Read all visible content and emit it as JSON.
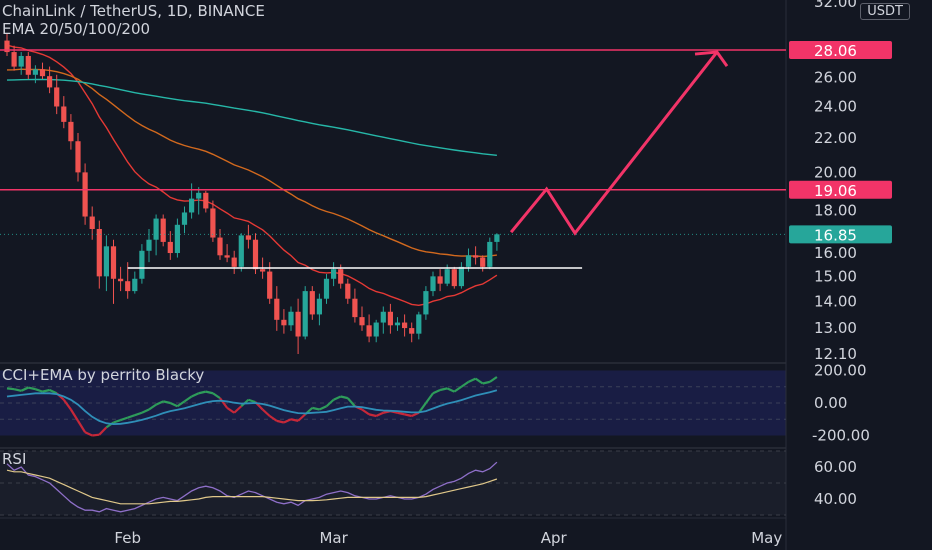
{
  "header": {
    "title": "ChainLink / TetherUS, 1D, BINANCE",
    "indicator": "EMA 20/50/100/200",
    "currency_button": "USDT"
  },
  "panes": {
    "cci_label": "CCI+EMA by perrito Blacky",
    "rsi_label": "RSI"
  },
  "colors": {
    "background": "#131722",
    "bull": "#26a69a",
    "bear": "#ef5350",
    "level_line": "#f23468",
    "current_price": "#26a69a",
    "ema20": "#e53935",
    "ema50": "#d2691e",
    "ema200": "#26b7a8",
    "projection": "#f23468",
    "neckline": "#ffffff"
  },
  "chart_data": [
    {
      "type": "candlestick",
      "title": "ChainLink / TetherUS, 1D, BINANCE",
      "ylim": [
        11.7,
        32.0
      ],
      "y_scale": "log",
      "y_ticks": [
        "12.10",
        "13.00",
        "14.00",
        "15.00",
        "16.00",
        "18.00",
        "20.00",
        "22.00",
        "24.00",
        "26.00",
        "32.00"
      ],
      "x_ticks": [
        "Feb",
        "Mar",
        "Apr",
        "May"
      ],
      "levels": [
        {
          "value": 28.06,
          "label": "28.06"
        },
        {
          "value": 19.06,
          "label": "19.06"
        }
      ],
      "current_price": {
        "value": 16.85,
        "label": "16.85"
      },
      "neckline": {
        "value": 15.35,
        "from_day": 17,
        "to_day": 81
      },
      "projection_path": [
        [
          71,
          16.95
        ],
        [
          76,
          19.1
        ],
        [
          80,
          16.9
        ],
        [
          100,
          27.9
        ]
      ],
      "candles_ohlc": [
        [
          28.8,
          29.4,
          27.6,
          27.9
        ],
        [
          27.9,
          28.4,
          26.5,
          26.8
        ],
        [
          26.8,
          27.9,
          26.2,
          27.6
        ],
        [
          27.6,
          27.9,
          25.9,
          26.2
        ],
        [
          26.2,
          26.9,
          25.6,
          26.6
        ],
        [
          26.6,
          27.1,
          25.9,
          26.1
        ],
        [
          26.1,
          26.8,
          24.9,
          25.3
        ],
        [
          25.3,
          26.2,
          23.5,
          24.0
        ],
        [
          24.0,
          24.7,
          22.6,
          23.0
        ],
        [
          23.0,
          23.5,
          21.3,
          21.8
        ],
        [
          21.8,
          22.3,
          19.5,
          20.0
        ],
        [
          20.0,
          20.5,
          17.3,
          17.7
        ],
        [
          17.7,
          18.2,
          16.6,
          17.1
        ],
        [
          17.1,
          17.5,
          14.5,
          15.0
        ],
        [
          15.0,
          16.8,
          14.4,
          16.3
        ],
        [
          16.3,
          16.6,
          13.9,
          14.9
        ],
        [
          14.9,
          15.4,
          14.4,
          14.8
        ],
        [
          14.8,
          15.6,
          14.1,
          14.4
        ],
        [
          14.4,
          15.2,
          14.3,
          14.9
        ],
        [
          14.9,
          16.4,
          14.7,
          16.1
        ],
        [
          16.1,
          17.1,
          15.6,
          16.6
        ],
        [
          16.6,
          17.8,
          15.9,
          17.6
        ],
        [
          17.6,
          17.8,
          16.3,
          16.5
        ],
        [
          16.5,
          17.0,
          15.7,
          16.0
        ],
        [
          16.0,
          17.6,
          15.8,
          17.3
        ],
        [
          17.3,
          18.2,
          16.9,
          17.9
        ],
        [
          17.9,
          19.4,
          17.6,
          18.6
        ],
        [
          18.6,
          19.2,
          17.8,
          18.9
        ],
        [
          18.9,
          19.0,
          17.9,
          18.1
        ],
        [
          18.1,
          18.5,
          16.5,
          16.7
        ],
        [
          16.7,
          17.1,
          15.7,
          15.9
        ],
        [
          15.9,
          16.4,
          15.6,
          15.8
        ],
        [
          15.8,
          16.1,
          15.1,
          15.4
        ],
        [
          15.4,
          16.9,
          15.2,
          16.8
        ],
        [
          16.8,
          17.3,
          16.2,
          16.6
        ],
        [
          16.6,
          16.9,
          15.1,
          15.3
        ],
        [
          15.3,
          15.8,
          14.9,
          15.2
        ],
        [
          15.2,
          15.6,
          13.9,
          14.1
        ],
        [
          14.1,
          14.6,
          12.9,
          13.3
        ],
        [
          13.3,
          13.7,
          12.8,
          13.1
        ],
        [
          13.1,
          13.8,
          12.9,
          13.6
        ],
        [
          13.6,
          14.1,
          12.1,
          12.7
        ],
        [
          12.7,
          14.6,
          12.6,
          14.4
        ],
        [
          14.4,
          14.6,
          13.3,
          13.5
        ],
        [
          13.5,
          14.3,
          13.1,
          14.1
        ],
        [
          14.1,
          15.1,
          13.9,
          14.9
        ],
        [
          14.9,
          15.6,
          14.6,
          15.3
        ],
        [
          15.3,
          15.5,
          14.5,
          14.7
        ],
        [
          14.7,
          14.9,
          13.9,
          14.1
        ],
        [
          14.1,
          14.5,
          13.2,
          13.4
        ],
        [
          13.4,
          13.8,
          12.9,
          13.1
        ],
        [
          13.1,
          13.5,
          12.5,
          12.7
        ],
        [
          12.7,
          13.3,
          12.5,
          13.2
        ],
        [
          13.2,
          13.8,
          12.8,
          13.6
        ],
        [
          13.6,
          13.9,
          12.8,
          13.1
        ],
        [
          13.1,
          13.4,
          12.9,
          13.2
        ],
        [
          13.2,
          13.5,
          12.7,
          13.0
        ],
        [
          13.0,
          13.2,
          12.5,
          12.8
        ],
        [
          12.8,
          13.6,
          12.6,
          13.5
        ],
        [
          13.5,
          14.6,
          13.3,
          14.4
        ],
        [
          14.4,
          15.2,
          14.2,
          15.0
        ],
        [
          15.0,
          15.3,
          14.4,
          14.7
        ],
        [
          14.7,
          15.5,
          14.6,
          15.3
        ],
        [
          15.3,
          15.4,
          14.5,
          14.6
        ],
        [
          14.6,
          15.6,
          14.5,
          15.4
        ],
        [
          15.4,
          16.2,
          15.2,
          15.9
        ],
        [
          15.9,
          16.3,
          15.5,
          15.8
        ],
        [
          15.8,
          15.9,
          15.2,
          15.4
        ],
        [
          15.4,
          16.7,
          15.3,
          16.5
        ],
        [
          16.5,
          16.9,
          16.1,
          16.85
        ]
      ]
    },
    {
      "type": "line",
      "title": "CCI+EMA by perrito Blacky",
      "ylim": [
        -240,
        230
      ],
      "y_ticks": [
        "200.00",
        "0.00",
        "-200.00"
      ],
      "series": [
        {
          "values": [
            90,
            85,
            75,
            95,
            85,
            70,
            80,
            60,
            20,
            -40,
            -110,
            -180,
            -200,
            -195,
            -150,
            -120,
            -105,
            -90,
            -75,
            -60,
            -40,
            -10,
            10,
            0,
            -20,
            10,
            40,
            60,
            70,
            60,
            30,
            -30,
            -60,
            -20,
            20,
            5,
            -40,
            -80,
            -110,
            -120,
            -100,
            -110,
            -70,
            -30,
            -40,
            -20,
            20,
            40,
            30,
            -20,
            -40,
            -70,
            -80,
            -60,
            -50,
            -60,
            -70,
            -80,
            -60,
            0,
            60,
            80,
            90,
            70,
            100,
            130,
            150,
            120,
            130,
            160
          ]
        },
        {
          "values": [
            40,
            45,
            50,
            55,
            60,
            60,
            60,
            55,
            40,
            20,
            -10,
            -50,
            -85,
            -110,
            -125,
            -130,
            -128,
            -122,
            -114,
            -104,
            -92,
            -78,
            -62,
            -50,
            -42,
            -32,
            -20,
            -8,
            4,
            12,
            14,
            10,
            2,
            -4,
            -2,
            0,
            -6,
            -16,
            -30,
            -44,
            -54,
            -62,
            -64,
            -60,
            -58,
            -54,
            -44,
            -32,
            -22,
            -22,
            -26,
            -34,
            -42,
            -46,
            -48,
            -50,
            -54,
            -58,
            -58,
            -50,
            -34,
            -18,
            -4,
            6,
            18,
            32,
            46,
            56,
            66,
            78
          ]
        }
      ]
    },
    {
      "type": "line",
      "title": "RSI",
      "ylim": [
        30,
        72
      ],
      "y_ticks": [
        "60.00",
        "40.00"
      ],
      "series": [
        {
          "values": [
            62,
            58,
            60,
            55,
            54,
            52,
            50,
            46,
            42,
            38,
            35,
            33,
            33,
            32,
            34,
            33,
            32,
            33,
            34,
            36,
            38,
            40,
            41,
            40,
            39,
            42,
            45,
            47,
            48,
            47,
            45,
            42,
            41,
            43,
            45,
            44,
            42,
            40,
            38,
            37,
            38,
            36,
            39,
            40,
            41,
            43,
            44,
            45,
            44,
            42,
            41,
            40,
            40,
            41,
            42,
            41,
            40,
            40,
            41,
            43,
            46,
            48,
            50,
            51,
            53,
            56,
            58,
            57,
            59,
            63
          ]
        },
        {
          "values": [
            58,
            57,
            57,
            56,
            55,
            54,
            53,
            51,
            49,
            47,
            45,
            43,
            41,
            40,
            39,
            38,
            37,
            37,
            37,
            37,
            37,
            37.5,
            38,
            38.5,
            38.5,
            39,
            39.5,
            40,
            41,
            41.5,
            41.5,
            41.5,
            41.5,
            41.5,
            41.5,
            41.5,
            41.5,
            41,
            40.5,
            40,
            39.5,
            39,
            39,
            39,
            39.2,
            39.5,
            40,
            40.5,
            41,
            41,
            41,
            41,
            41,
            41,
            41,
            41,
            41,
            41,
            41,
            41.5,
            42.5,
            43.5,
            44.5,
            45.5,
            46.5,
            47.5,
            48.5,
            49.5,
            51,
            52.5
          ]
        }
      ]
    }
  ]
}
